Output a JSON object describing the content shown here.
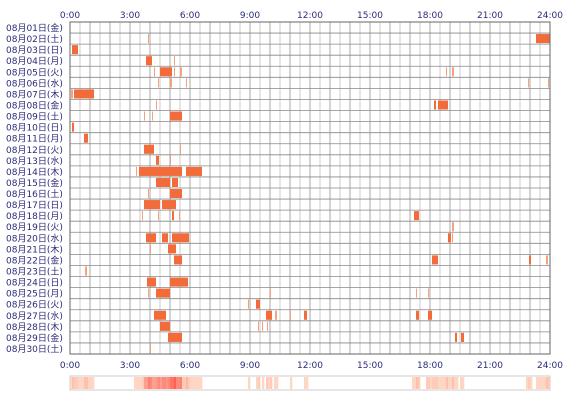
{
  "chart_data": {
    "type": "heatmap",
    "title": "",
    "xlabel": "",
    "ylabel": "",
    "x_unit": "hour",
    "xlim": [
      0,
      24
    ],
    "x_ticks": [
      "0:00",
      "3:00",
      "6:00",
      "9:00",
      "12:00",
      "15:00",
      "18:00",
      "21:00",
      "24:00"
    ],
    "grid": true,
    "colors": {
      "bar": "#f26b3a",
      "bar_light": "#f7a07a",
      "grid": "#888888",
      "frame": "#666666",
      "text": "#2a2a7a"
    },
    "rows": [
      {
        "label": "08月01日(金)",
        "intervals": []
      },
      {
        "label": "08月02日(土)",
        "intervals": [
          [
            3.9,
            3.95
          ],
          [
            23.3,
            24.0
          ]
        ]
      },
      {
        "label": "08月03日(日)",
        "intervals": [
          [
            0.1,
            0.4
          ]
        ]
      },
      {
        "label": "08月04日(月)",
        "intervals": [
          [
            3.8,
            4.1
          ],
          [
            5.2,
            5.25
          ]
        ]
      },
      {
        "label": "08月05日(火)",
        "intervals": [
          [
            4.2,
            4.25
          ],
          [
            4.5,
            5.1
          ],
          [
            5.2,
            5.25
          ],
          [
            5.5,
            5.6
          ],
          [
            18.8,
            18.85
          ],
          [
            19.1,
            19.2
          ]
        ]
      },
      {
        "label": "08月06日(水)",
        "intervals": [
          [
            4.4,
            4.45
          ],
          [
            5.0,
            5.1
          ],
          [
            5.8,
            5.85
          ],
          [
            22.9,
            22.95
          ],
          [
            23.9,
            23.95
          ]
        ]
      },
      {
        "label": "08月07日(木)",
        "intervals": [
          [
            0.05,
            0.15
          ],
          [
            0.2,
            1.2
          ]
        ]
      },
      {
        "label": "08月08日(金)",
        "intervals": [
          [
            4.3,
            4.35
          ],
          [
            18.2,
            18.3
          ],
          [
            18.4,
            18.9
          ]
        ]
      },
      {
        "label": "08月09日(土)",
        "intervals": [
          [
            3.7,
            3.75
          ],
          [
            4.1,
            4.15
          ],
          [
            5.0,
            5.6
          ]
        ]
      },
      {
        "label": "08月10日(日)",
        "intervals": [
          [
            0.1,
            0.2
          ]
        ]
      },
      {
        "label": "08月11日(月)",
        "intervals": [
          [
            0.7,
            0.9
          ]
        ]
      },
      {
        "label": "08月12日(火)",
        "intervals": [
          [
            3.7,
            4.2
          ],
          [
            5.5,
            5.55
          ]
        ]
      },
      {
        "label": "08月13日(水)",
        "intervals": [
          [
            4.3,
            4.45
          ],
          [
            5.0,
            5.05
          ]
        ]
      },
      {
        "label": "08月14日(木)",
        "intervals": [
          [
            3.3,
            3.35
          ],
          [
            3.45,
            5.6
          ],
          [
            5.8,
            6.6
          ]
        ]
      },
      {
        "label": "08月15日(金)",
        "intervals": [
          [
            4.3,
            5.0
          ],
          [
            5.1,
            5.4
          ]
        ]
      },
      {
        "label": "08月16日(土)",
        "intervals": [
          [
            3.9,
            3.95
          ],
          [
            5.0,
            5.6
          ]
        ]
      },
      {
        "label": "08月17日(日)",
        "intervals": [
          [
            3.7,
            4.5
          ],
          [
            4.6,
            5.3
          ]
        ]
      },
      {
        "label": "08月18日(月)",
        "intervals": [
          [
            3.6,
            3.65
          ],
          [
            4.4,
            4.45
          ],
          [
            5.1,
            5.2
          ],
          [
            5.45,
            5.5
          ],
          [
            17.2,
            17.45
          ]
        ]
      },
      {
        "label": "08月19日(火)",
        "intervals": [
          [
            19.1,
            19.2
          ]
        ]
      },
      {
        "label": "08月20日(水)",
        "intervals": [
          [
            3.8,
            4.3
          ],
          [
            4.6,
            4.9
          ],
          [
            5.1,
            5.95
          ],
          [
            18.9,
            19.05
          ],
          [
            19.1,
            19.15
          ]
        ]
      },
      {
        "label": "08月21日(木)",
        "intervals": [
          [
            4.0,
            4.05
          ],
          [
            4.9,
            5.3
          ]
        ]
      },
      {
        "label": "08月22日(金)",
        "intervals": [
          [
            5.2,
            5.6
          ],
          [
            18.1,
            18.4
          ],
          [
            22.95,
            23.05
          ],
          [
            23.8,
            23.9
          ]
        ]
      },
      {
        "label": "08月23日(土)",
        "intervals": [
          [
            0.75,
            0.85
          ]
        ]
      },
      {
        "label": "08月24日(日)",
        "intervals": [
          [
            3.85,
            4.3
          ],
          [
            5.0,
            5.9
          ]
        ]
      },
      {
        "label": "08月25日(月)",
        "intervals": [
          [
            3.9,
            3.95
          ],
          [
            4.3,
            5.0
          ],
          [
            10.0,
            10.05
          ],
          [
            17.3,
            17.35
          ],
          [
            17.9,
            17.95
          ]
        ]
      },
      {
        "label": "08月26日(火)",
        "intervals": [
          [
            8.9,
            8.95
          ],
          [
            9.3,
            9.5
          ]
        ]
      },
      {
        "label": "08月27日(水)",
        "intervals": [
          [
            4.2,
            4.8
          ],
          [
            9.8,
            10.1
          ],
          [
            10.25,
            10.35
          ],
          [
            11.0,
            11.05
          ],
          [
            11.7,
            11.85
          ],
          [
            17.3,
            17.45
          ],
          [
            17.9,
            18.1
          ]
        ]
      },
      {
        "label": "08月28日(木)",
        "intervals": [
          [
            4.5,
            5.0
          ],
          [
            9.4,
            9.45
          ],
          [
            9.6,
            9.65
          ],
          [
            9.85,
            9.9
          ]
        ]
      },
      {
        "label": "08月29日(金)",
        "intervals": [
          [
            4.9,
            5.6
          ],
          [
            19.25,
            19.35
          ],
          [
            19.55,
            19.7
          ]
        ]
      },
      {
        "label": "08月30日(土)",
        "intervals": [
          [
            4.0,
            4.05
          ]
        ]
      }
    ],
    "density_strip": {
      "range": [
        0,
        24
      ]
    }
  }
}
